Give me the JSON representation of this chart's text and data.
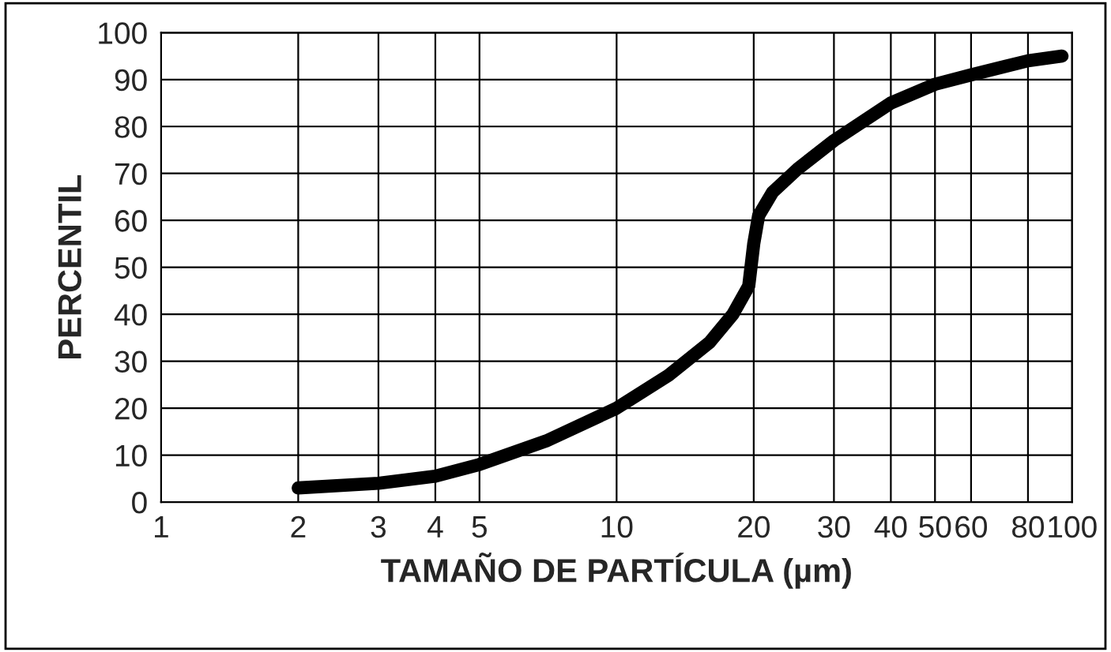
{
  "chart_data": {
    "type": "line",
    "xlabel": "TAMAÑO DE PARTÍCULA (µm)",
    "ylabel": "PERCENTIL",
    "log": "x",
    "grid": true,
    "xlim": [
      1,
      100
    ],
    "ylim": [
      0,
      100
    ],
    "xticks": [
      1,
      2,
      3,
      4,
      5,
      10,
      20,
      30,
      40,
      50,
      60,
      80,
      100
    ],
    "yticks": [
      0,
      10,
      20,
      30,
      40,
      50,
      60,
      70,
      80,
      90,
      100
    ],
    "series": [
      {
        "color": "#000000",
        "x": [
          2,
          3,
          4,
          5,
          7,
          10,
          13,
          16,
          18,
          19.5,
          20,
          20.5,
          22,
          25,
          30,
          40,
          50,
          60,
          80,
          95
        ],
        "values": [
          3,
          4,
          5.5,
          8,
          13,
          20,
          27,
          34,
          40,
          46,
          55,
          61,
          66,
          71,
          77,
          85,
          89,
          91,
          94,
          95
        ]
      }
    ]
  }
}
